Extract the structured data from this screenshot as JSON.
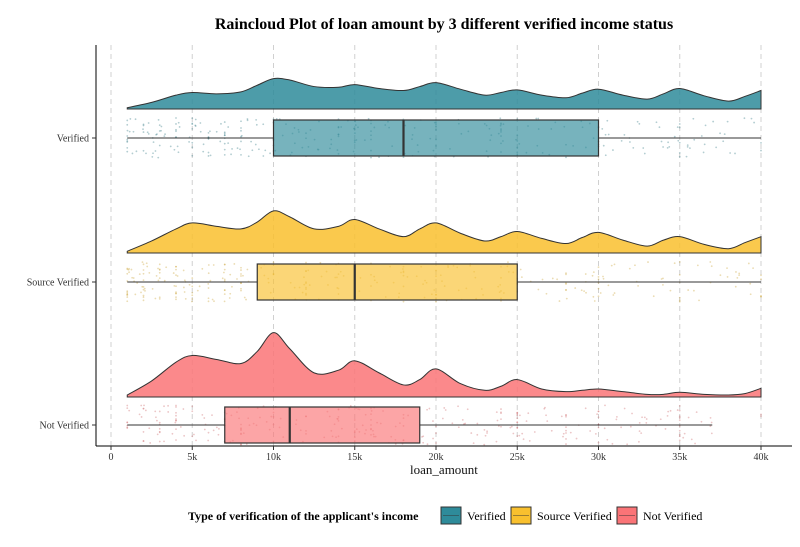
{
  "chart_data": {
    "type": "raincloud",
    "title": "Raincloud Plot of loan amount by 3 different verified income status",
    "xlabel": "loan_amount",
    "ylabel": "",
    "xlim": [
      0,
      40000
    ],
    "x_ticks": [
      0,
      5000,
      10000,
      15000,
      20000,
      25000,
      30000,
      35000,
      40000
    ],
    "x_tick_labels": [
      "0",
      "5k",
      "10k",
      "15k",
      "20k",
      "25k",
      "30k",
      "35k",
      "40k"
    ],
    "gridlines": "vertical dashed",
    "legend": {
      "title": "Type of verification of the applicant's income",
      "position": "bottom",
      "entries": [
        "Verified",
        "Source Verified",
        "Not Verified"
      ]
    },
    "series": [
      {
        "name": "Verified",
        "color": "#2E8B9A",
        "box": {
          "min": 1000,
          "q1": 10000,
          "median": 18000,
          "q3": 30000,
          "max": 40000
        },
        "density_x": [
          1000,
          2500,
          4000,
          5000,
          6500,
          8000,
          9000,
          10000,
          11000,
          12500,
          14000,
          15000,
          16500,
          18000,
          19000,
          20000,
          21500,
          23000,
          24000,
          25000,
          26500,
          28000,
          29000,
          30000,
          31500,
          33000,
          34000,
          35000,
          36500,
          38000,
          39000,
          40000
        ],
        "density_y": [
          0.04,
          0.2,
          0.42,
          0.5,
          0.46,
          0.52,
          0.72,
          0.92,
          0.88,
          0.68,
          0.66,
          0.74,
          0.62,
          0.56,
          0.68,
          0.8,
          0.6,
          0.42,
          0.5,
          0.58,
          0.42,
          0.34,
          0.48,
          0.6,
          0.42,
          0.3,
          0.46,
          0.62,
          0.4,
          0.24,
          0.38,
          0.56
        ]
      },
      {
        "name": "Source Verified",
        "color": "#F9C02E",
        "box": {
          "min": 1000,
          "q1": 9000,
          "median": 15000,
          "q3": 25000,
          "max": 40000
        },
        "density_x": [
          1000,
          2500,
          4000,
          5000,
          6500,
          8000,
          9000,
          10000,
          11000,
          12500,
          14000,
          15000,
          16500,
          18000,
          19000,
          20000,
          21500,
          23000,
          24000,
          25000,
          26500,
          28000,
          29000,
          30000,
          31500,
          33000,
          34000,
          35000,
          36500,
          38000,
          39000,
          40000
        ],
        "density_y": [
          0.04,
          0.28,
          0.56,
          0.7,
          0.62,
          0.56,
          0.72,
          0.98,
          0.84,
          0.56,
          0.62,
          0.78,
          0.56,
          0.38,
          0.56,
          0.7,
          0.46,
          0.28,
          0.38,
          0.5,
          0.34,
          0.22,
          0.36,
          0.48,
          0.3,
          0.16,
          0.3,
          0.38,
          0.2,
          0.1,
          0.24,
          0.38
        ]
      },
      {
        "name": "Not Verified",
        "color": "#FA7477",
        "box": {
          "min": 1000,
          "q1": 7000,
          "median": 11000,
          "q3": 19000,
          "max": 37000
        },
        "density_x": [
          1000,
          2500,
          4000,
          5000,
          6500,
          8000,
          9000,
          10000,
          11000,
          12500,
          14000,
          15000,
          16500,
          18000,
          19000,
          20000,
          21500,
          23000,
          24000,
          25000,
          26500,
          28000,
          29000,
          30000,
          31500,
          33000,
          34000,
          35000,
          36500,
          38000,
          39000,
          40000
        ],
        "density_y": [
          0.03,
          0.24,
          0.52,
          0.62,
          0.56,
          0.5,
          0.68,
          0.96,
          0.72,
          0.36,
          0.4,
          0.54,
          0.36,
          0.18,
          0.26,
          0.42,
          0.2,
          0.1,
          0.16,
          0.26,
          0.12,
          0.08,
          0.1,
          0.12,
          0.08,
          0.04,
          0.04,
          0.07,
          0.04,
          0.03,
          0.05,
          0.13
        ]
      }
    ]
  }
}
